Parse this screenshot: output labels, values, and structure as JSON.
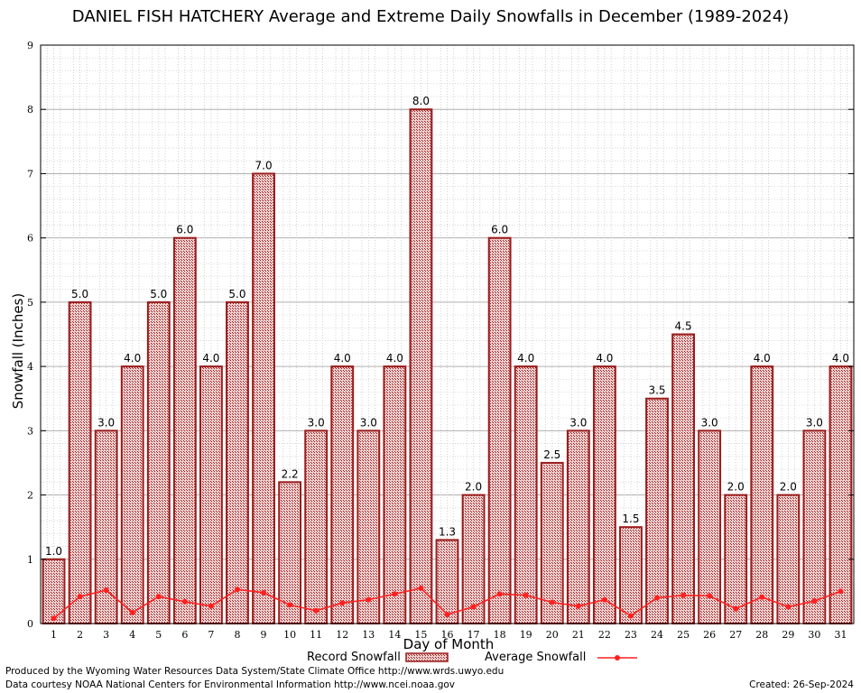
{
  "chart_data": {
    "type": "bar",
    "title": "DANIEL FISH HATCHERY Average and Extreme Daily Snowfalls in December (1989-2024)",
    "xlabel": "Day of Month",
    "ylabel": "Snowfall (Inches)",
    "ylim": [
      0,
      9
    ],
    "yticks": [
      "0",
      "1",
      "2",
      "3",
      "4",
      "5",
      "6",
      "7",
      "8",
      "9"
    ],
    "categories": [
      "1",
      "2",
      "3",
      "4",
      "5",
      "6",
      "7",
      "8",
      "9",
      "10",
      "11",
      "12",
      "13",
      "14",
      "15",
      "16",
      "17",
      "18",
      "19",
      "20",
      "21",
      "22",
      "23",
      "24",
      "25",
      "26",
      "27",
      "28",
      "29",
      "30",
      "31"
    ],
    "series": [
      {
        "name": "Record Snowfall",
        "type": "bar",
        "color": "#9b1b1b",
        "values": [
          1.0,
          5.0,
          3.0,
          4.0,
          5.0,
          6.0,
          4.0,
          5.0,
          7.0,
          2.2,
          3.0,
          4.0,
          3.0,
          4.0,
          8.0,
          1.3,
          2.0,
          6.0,
          4.0,
          2.5,
          3.0,
          4.0,
          1.5,
          3.5,
          4.5,
          3.0,
          2.0,
          4.0,
          2.0,
          3.0,
          4.0
        ],
        "labels": [
          "1.0",
          "5.0",
          "3.0",
          "4.0",
          "5.0",
          "6.0",
          "4.0",
          "5.0",
          "7.0",
          "2.2",
          "3.0",
          "4.0",
          "3.0",
          "4.0",
          "8.0",
          "1.3",
          "2.0",
          "6.0",
          "4.0",
          "2.5",
          "3.0",
          "4.0",
          "1.5",
          "3.5",
          "4.5",
          "3.0",
          "2.0",
          "4.0",
          "2.0",
          "3.0",
          "4.0"
        ]
      },
      {
        "name": "Average Snowfall",
        "type": "line",
        "color": "#ff2020",
        "values": [
          0.08,
          0.42,
          0.52,
          0.17,
          0.42,
          0.34,
          0.27,
          0.53,
          0.48,
          0.29,
          0.2,
          0.32,
          0.37,
          0.46,
          0.55,
          0.14,
          0.26,
          0.46,
          0.44,
          0.33,
          0.27,
          0.37,
          0.12,
          0.4,
          0.44,
          0.43,
          0.23,
          0.41,
          0.26,
          0.35,
          0.5
        ]
      }
    ],
    "grid": true,
    "legend": "bottom-center"
  },
  "footer": {
    "produced_by": "Produced by the Wyoming Water Resources Data System/State Climate Office http://www.wrds.uwyo.edu",
    "courtesy": "Data courtesy NOAA National Centers for Environmental Information http://www.ncei.noaa.gov",
    "created": "Created:  26-Sep-2024"
  }
}
